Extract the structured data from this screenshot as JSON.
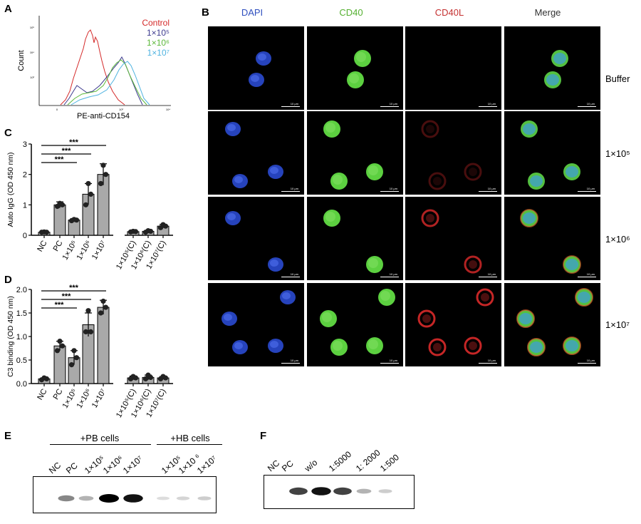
{
  "panel_labels": {
    "a": "A",
    "b": "B",
    "c": "C",
    "d": "D",
    "e": "E",
    "f": "F"
  },
  "panelA": {
    "xlabel": "PE-anti-CD154",
    "ylabel": "Count",
    "ticks_y": [
      "10³",
      "10⁴",
      "10⁵"
    ],
    "ticks_x": [
      "0",
      "10³",
      "10⁴"
    ],
    "legend": [
      {
        "label": "Control",
        "color": "#d42a2a"
      },
      {
        "label": "1×10⁵",
        "color": "#3d3b8f"
      },
      {
        "label": "1×10⁶",
        "color": "#5cb83a"
      },
      {
        "label": "1×10⁷",
        "color": "#4fb3e0"
      }
    ]
  },
  "panelB": {
    "columns": [
      "DAPI",
      "CD40",
      "CD40L",
      "Merge"
    ],
    "column_colors": [
      "#2f4fbf",
      "#54b030",
      "#c43030",
      "#333333"
    ],
    "rows": [
      "Buffer",
      "1×10⁵",
      "1×10⁶",
      "1×10⁷"
    ],
    "scalebar": "10 μm"
  },
  "chart_data": [
    {
      "type": "bar",
      "panel": "C",
      "ylabel": "Auto IgG (OD 450 nm)",
      "ylim": [
        0,
        3
      ],
      "yticks": [
        "0",
        "1",
        "2",
        "3"
      ],
      "categories": [
        "NC",
        "PC",
        "1×10⁵",
        "1×10⁶",
        "1×10⁷",
        "1×10⁵(C)",
        "1×10⁶(C)",
        "1×10⁷(C)"
      ],
      "values": [
        0.1,
        1.0,
        0.5,
        1.35,
        2.0,
        0.12,
        0.13,
        0.3
      ],
      "errors": [
        0.02,
        0.1,
        0.05,
        0.35,
        0.35,
        0.02,
        0.03,
        0.06
      ],
      "points": [
        [
          0.1,
          0.11,
          0.1
        ],
        [
          0.95,
          1.05,
          1.0
        ],
        [
          0.48,
          0.52,
          0.5
        ],
        [
          1.0,
          1.7,
          1.35
        ],
        [
          1.7,
          2.3,
          2.0
        ],
        [
          0.11,
          0.13,
          0.12
        ],
        [
          0.1,
          0.15,
          0.13
        ],
        [
          0.25,
          0.35,
          0.3
        ]
      ],
      "significance": [
        {
          "from": 0,
          "to": 4,
          "label": "***"
        },
        {
          "from": 0,
          "to": 3,
          "label": "***"
        },
        {
          "from": 0,
          "to": 2,
          "label": "***"
        }
      ]
    },
    {
      "type": "bar",
      "panel": "D",
      "ylabel": "C3 binding (OD 450 nm)",
      "ylim": [
        0,
        2.0
      ],
      "yticks": [
        "0.0",
        "0.5",
        "1.0",
        "1.5",
        "2.0"
      ],
      "categories": [
        "NC",
        "PC",
        "1×10⁵",
        "1×10⁶",
        "1×10⁷",
        "1×10⁵(C)",
        "1×10⁶(C)",
        "1×10⁷(C)"
      ],
      "values": [
        0.1,
        0.8,
        0.55,
        1.25,
        1.62,
        0.12,
        0.13,
        0.12
      ],
      "errors": [
        0.02,
        0.1,
        0.15,
        0.25,
        0.15,
        0.04,
        0.05,
        0.03
      ],
      "points": [
        [
          0.08,
          0.12,
          0.1
        ],
        [
          0.7,
          0.9,
          0.8
        ],
        [
          0.4,
          0.7,
          0.55
        ],
        [
          1.1,
          1.55,
          1.1
        ],
        [
          1.5,
          1.75,
          1.62
        ],
        [
          0.1,
          0.15,
          0.12
        ],
        [
          0.1,
          0.18,
          0.13
        ],
        [
          0.1,
          0.15,
          0.12
        ]
      ],
      "significance": [
        {
          "from": 0,
          "to": 4,
          "label": "***"
        },
        {
          "from": 0,
          "to": 3,
          "label": "***"
        },
        {
          "from": 0,
          "to": 2,
          "label": "***"
        }
      ]
    }
  ],
  "panelE": {
    "group1": "+PB cells",
    "group2": "+HB cells",
    "lanes": [
      "NC",
      "PC",
      "1×10⁵",
      "1×10⁶",
      "1×10⁷",
      "1×10⁵",
      "1×10 ⁶",
      "1×10⁷"
    ],
    "band_intensity": [
      0,
      0.55,
      0.35,
      1.0,
      0.95,
      0.1,
      0.15,
      0.2
    ]
  },
  "panelF": {
    "lanes": [
      "NC",
      "PC",
      "w/o",
      "1:5000",
      "1: 2000",
      "1:500"
    ],
    "band_intensity": [
      0,
      0.8,
      0.95,
      0.8,
      0.35,
      0.2
    ]
  }
}
